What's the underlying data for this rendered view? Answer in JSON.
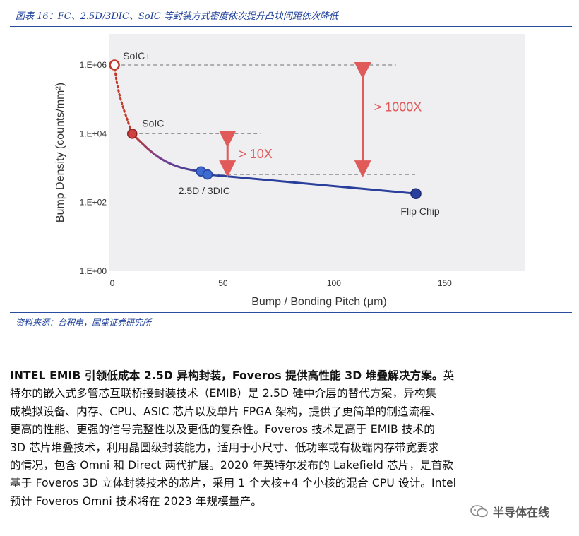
{
  "figure": {
    "caption": "图表 16：FC、2.5D/3DIC、SoIC 等封装方式密度依次提升凸块间距依次降低",
    "source": "资料来源：台积电，国盛证券研究所"
  },
  "chart_data": {
    "type": "line",
    "xlabel": "Bump / Bonding Pitch (μm)",
    "ylabel": "Bump Density (counts/mm²)",
    "xlim": [
      0,
      180
    ],
    "x_ticks": [
      "0",
      "50",
      "100",
      "150"
    ],
    "y_scale": "log",
    "y_ticks": [
      "1.E+00",
      "1.E+02",
      "1.E+04",
      "1.E+06"
    ],
    "series": [
      {
        "name": "Bump Density",
        "points": [
          {
            "x": 1,
            "y": 1000000,
            "label": "SoIC+"
          },
          {
            "x": 9,
            "y": 10000,
            "label": "SoIC"
          },
          {
            "x": 40,
            "y": 800,
            "label": ""
          },
          {
            "x": 43,
            "y": 650,
            "label": "2.5D / 3DIC"
          },
          {
            "x": 137,
            "y": 180,
            "label": "Flip Chip"
          }
        ]
      }
    ],
    "annotations": [
      {
        "text": "> 10X",
        "from": 10000,
        "to": 650
      },
      {
        "text": "> 1000X",
        "from": 1000000,
        "to": 650
      }
    ]
  },
  "body": {
    "lead": "INTEL EMIB 引领低成本 2.5D 异构封装，Foveros 提供高性能 3D 堆叠解决方案。",
    "line1_rest": "英",
    "lines": [
      "特尔的嵌入式多管芯互联桥接封装技术（EMIB）是 2.5D 硅中介层的替代方案，异构集",
      "成模拟设备、内存、CPU、ASIC 芯片以及单片 FPGA 架构，提供了更简单的制造流程、",
      "更高的性能、更强的信号完整性以及更低的复杂性。Foveros 技术是高于 EMIB 技术的",
      "3D 芯片堆叠技术，利用晶圆级封装能力，适用于小尺寸、低功率或有极端内存带宽要求",
      "的情况，包含 Omni 和 Direct 两代扩展。2020 年英特尔发布的 Lakefield 芯片，是首款",
      "基于 Foveros 3D 立体封装技术的芯片，采用 1 个大核+4 个小核的混合 CPU 设计。Intel",
      "预计 Foveros Omni 技术将在 2023 年规模量产。"
    ]
  },
  "watermark": {
    "text": "半导体在线",
    "icon": "wechat-icon"
  }
}
